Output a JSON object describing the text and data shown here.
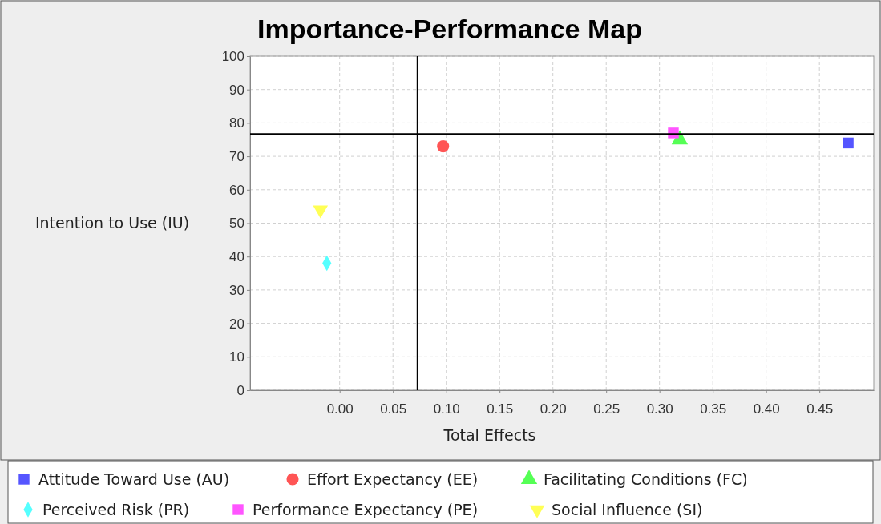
{
  "chart_data": {
    "type": "scatter",
    "title": "Importance-Performance Map",
    "xlabel": "Total Effects",
    "ylabel": "Intention to Use (IU)",
    "xlim": [
      -0.084,
      0.501
    ],
    "xticks": [
      {
        "value": 0,
        "label": "0.00"
      },
      {
        "value": 0.05,
        "label": "0.05"
      },
      {
        "value": 0.1,
        "label": "0.10"
      },
      {
        "value": 0.15,
        "label": "0.15"
      },
      {
        "value": 0.2,
        "label": "0.20"
      },
      {
        "value": 0.25,
        "label": "0.25"
      },
      {
        "value": 0.3,
        "label": "0.30"
      },
      {
        "value": 0.35,
        "label": "0.35"
      },
      {
        "value": 0.4,
        "label": "0.40"
      },
      {
        "value": 0.45,
        "label": "0.45"
      }
    ],
    "ylim": [
      0,
      100
    ],
    "yticks": [
      0,
      10,
      20,
      30,
      40,
      50,
      60,
      70,
      80,
      90,
      100
    ],
    "grid": true,
    "legend": "bottom",
    "series": [
      {
        "name": "Attitude Toward Use (AU)",
        "color": "#5555ff",
        "marker": "square",
        "x": [
          0.477
        ],
        "values": [
          74
        ]
      },
      {
        "name": "Effort Expectancy (EE)",
        "color": "#ff5555",
        "marker": "circle",
        "x": [
          0.097
        ],
        "values": [
          73
        ]
      },
      {
        "name": "Facilitating Conditions (FC)",
        "color": "#55ff55",
        "marker": "triangle",
        "x": [
          0.319
        ],
        "values": [
          75
        ]
      },
      {
        "name": "Perceived Risk (PR)",
        "color": "#55ffff",
        "marker": "diamond",
        "x": [
          -0.012
        ],
        "values": [
          38
        ]
      },
      {
        "name": "Performance Expectancy (PE)",
        "color": "#ff55ff",
        "marker": "square",
        "x": [
          0.313
        ],
        "values": [
          77
        ]
      },
      {
        "name": "Social Influence (SI)",
        "color": "#ffff55",
        "marker": "triangle-down",
        "x": [
          -0.018
        ],
        "values": [
          54
        ]
      }
    ],
    "ref_lines": [
      {
        "axis": "y",
        "value": 76.7,
        "color": "#000000"
      },
      {
        "axis": "x",
        "value": 0.073,
        "color": "#000000"
      }
    ]
  }
}
